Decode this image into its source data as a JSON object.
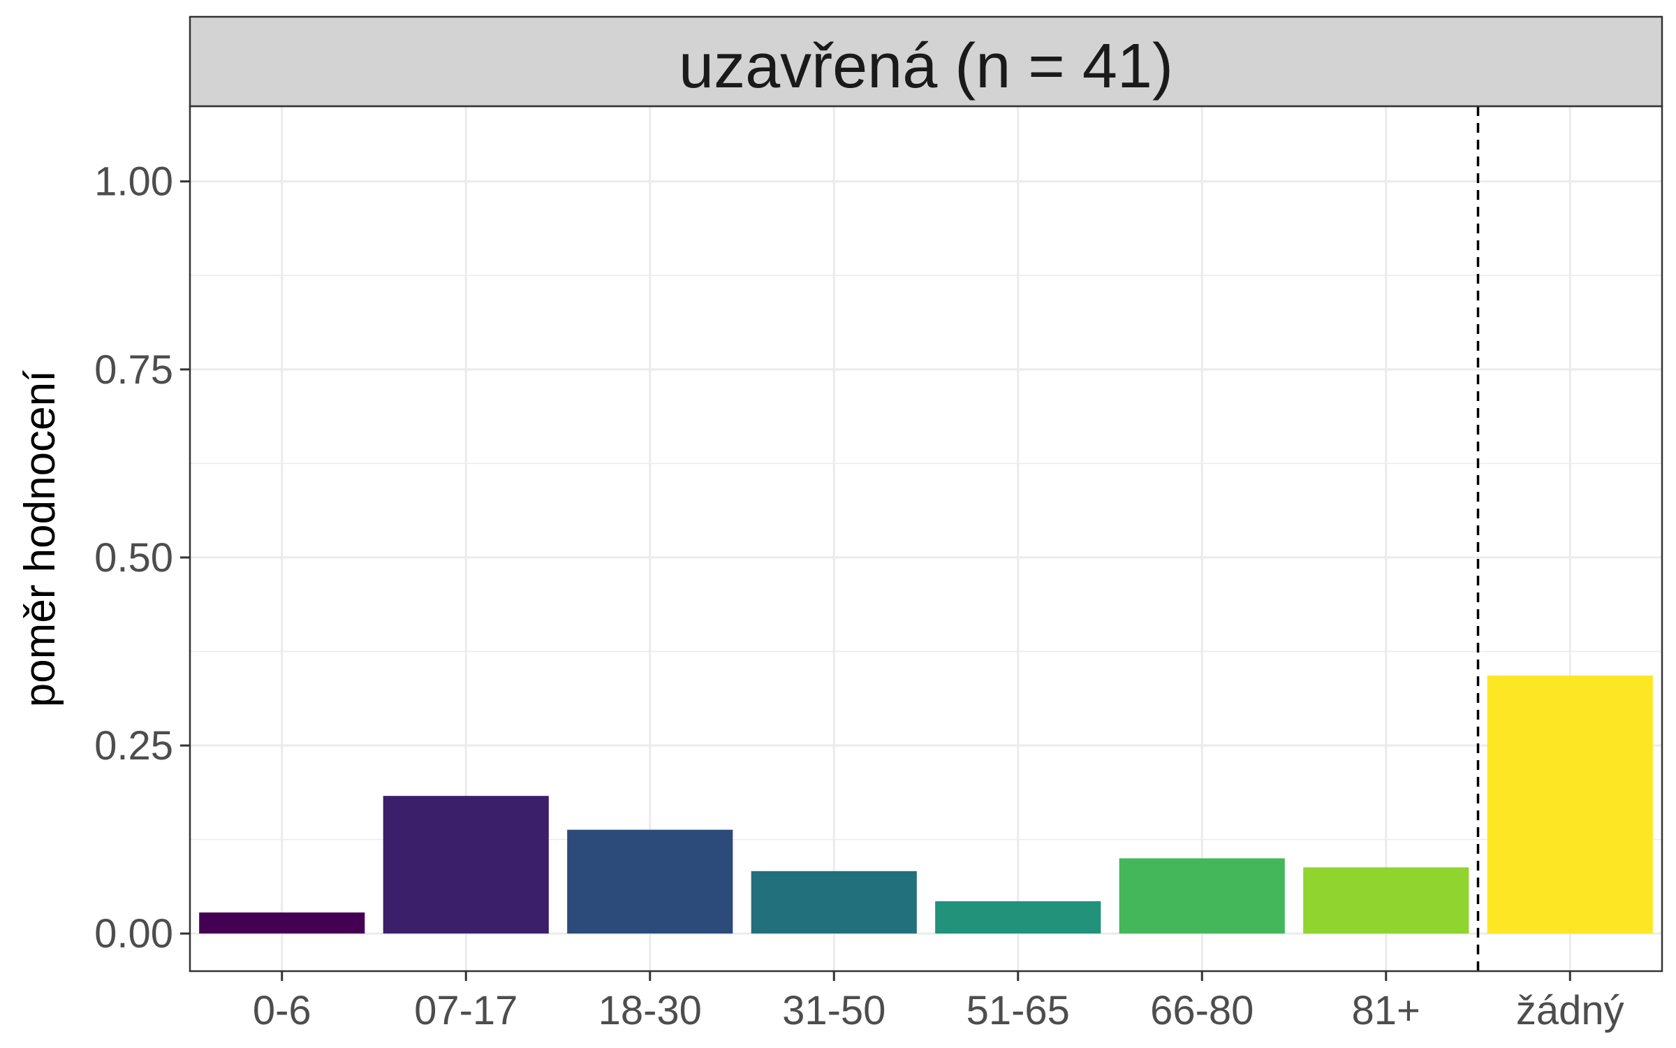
{
  "chart_data": {
    "type": "bar",
    "panel_title": "uzavřená (n = 41)",
    "ylabel": "poměr hodnocení",
    "xlabel": "",
    "categories": [
      "0-6",
      "07-17",
      "18-30",
      "31-50",
      "51-65",
      "66-80",
      "81+",
      "žádný"
    ],
    "values": [
      0.028,
      0.183,
      0.138,
      0.083,
      0.043,
      0.1,
      0.088,
      0.343
    ],
    "colors": [
      "#440154",
      "#3b1f6b",
      "#2c4a7a",
      "#21707c",
      "#22927a",
      "#43b75a",
      "#8fd42f",
      "#fde725"
    ],
    "ylim": [
      -0.05,
      1.1
    ],
    "yticks": [
      0.0,
      0.25,
      0.5,
      0.75,
      1.0
    ],
    "ytick_labels": [
      "0.00",
      "0.25",
      "0.50",
      "0.75",
      "1.00"
    ],
    "separator_between": [
      "81+",
      "žádný"
    ],
    "grid": true
  }
}
